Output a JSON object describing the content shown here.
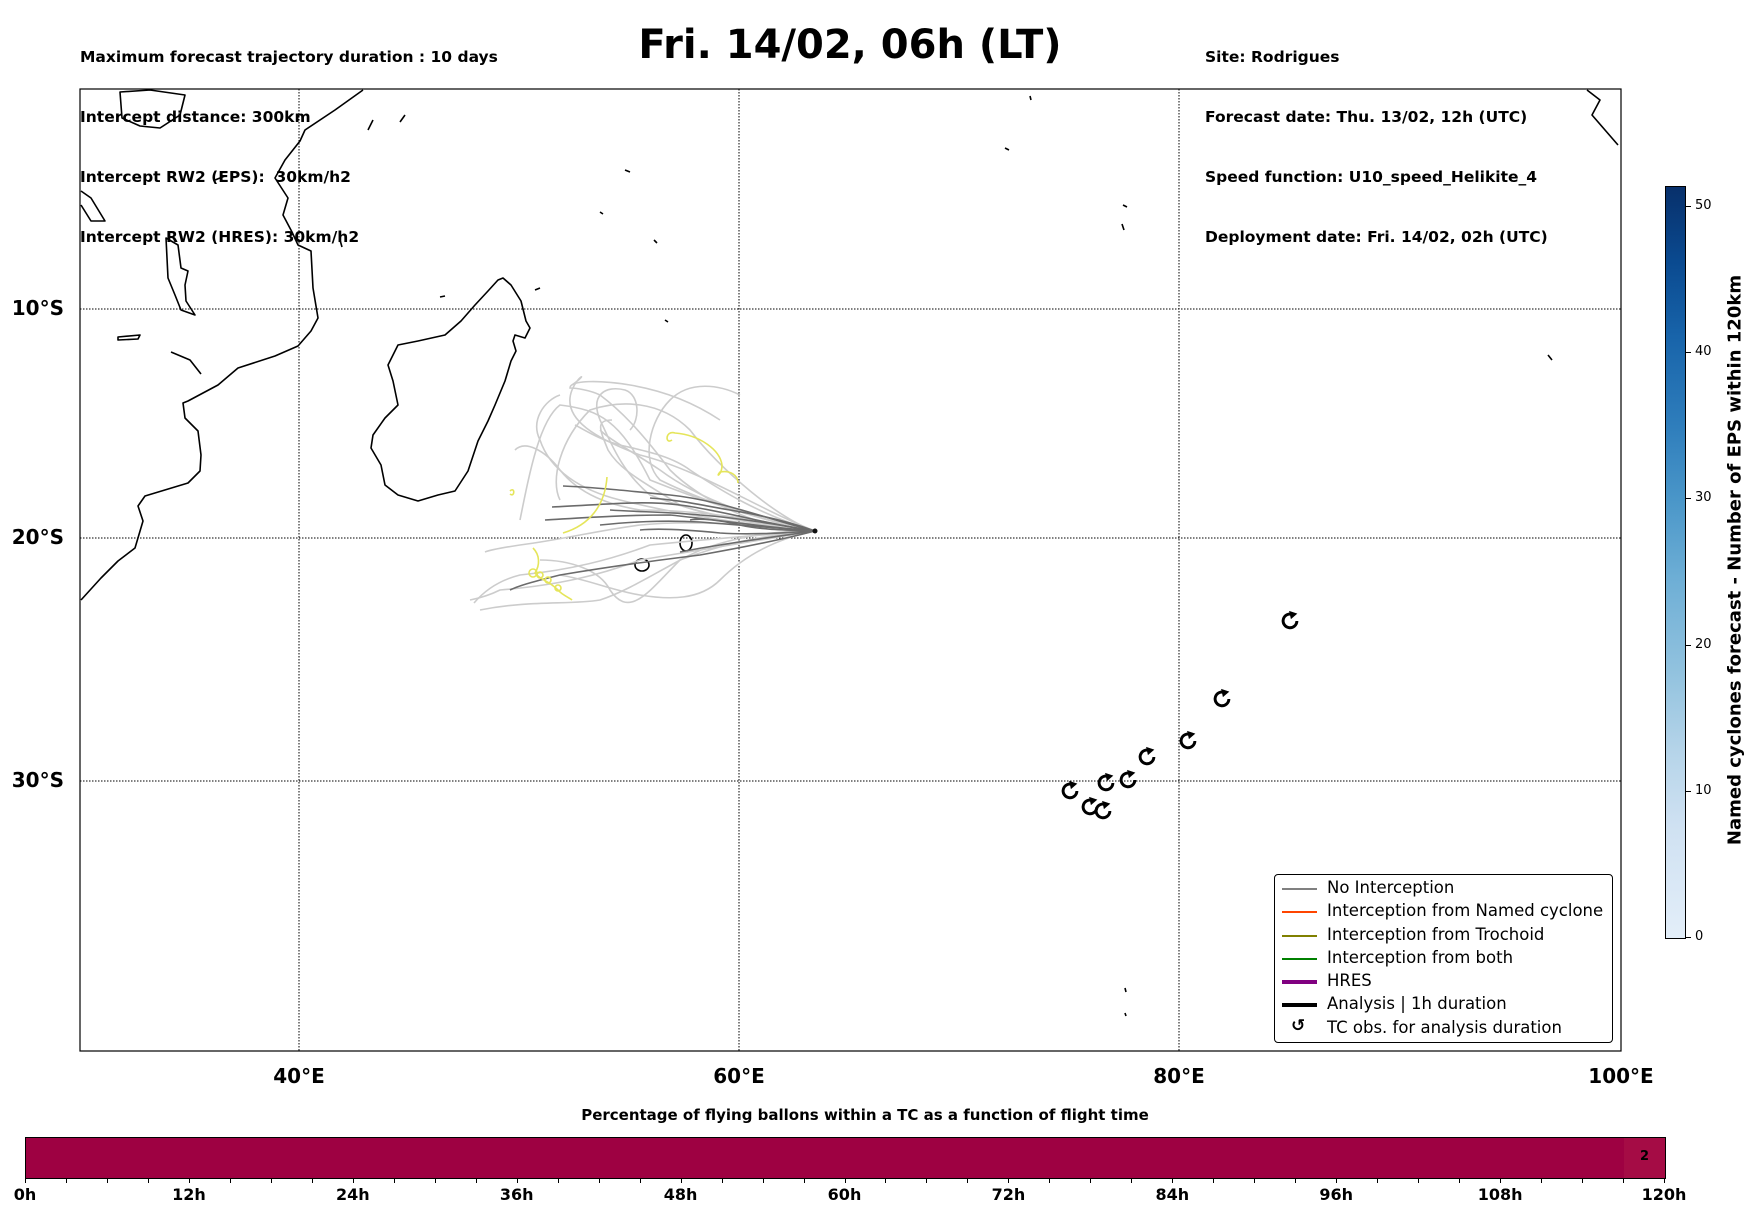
{
  "header_left": [
    "Maximum forecast trajectory duration : 10 days",
    "Intercept distance: 300km",
    "Intercept RW2 (EPS):  30km/h2",
    "Intercept RW2 (HRES): 30km/h2"
  ],
  "title": "Fri. 14/02, 06h (LT)",
  "header_right": [
    "Site: Rodrigues",
    "Forecast date: Thu. 13/02, 12h (UTC)",
    "Speed function: U10_speed_Helikite_4",
    "Deployment date: Fri. 14/02, 02h (UTC)"
  ],
  "map": {
    "lat_labels": [
      "10°S",
      "20°S",
      "30°S"
    ],
    "lon_labels": [
      "40°E",
      "60°E",
      "80°E",
      "100°E"
    ],
    "legend": [
      {
        "label": "No Interception",
        "color": "#808080",
        "style": "thin"
      },
      {
        "label": "Interception from Named cyclone",
        "color": "#ff4500",
        "style": "thin"
      },
      {
        "label": "Interception from Trochoid",
        "color": "#808000",
        "style": "thin"
      },
      {
        "label": "Interception from both",
        "color": "#008000",
        "style": "thin"
      },
      {
        "label": "HRES",
        "color": "#800080",
        "style": "thick"
      },
      {
        "label": "Analysis | 1h duration",
        "color": "#000000",
        "style": "thick"
      },
      {
        "label": "TC obs. for analysis duration",
        "color": "#000000",
        "style": "symbol"
      }
    ],
    "tc_symbol": "↺"
  },
  "colorbar": {
    "title": "Named cyclones forecast - Number of EPS within 120km",
    "ticks": [
      "0",
      "10",
      "20",
      "30",
      "40",
      "50"
    ]
  },
  "chart_data": {
    "type": "heatmap",
    "title": "Percentage of flying ballons within a TC as a function of flight time",
    "xlabel": "",
    "xlim": [
      0,
      120
    ],
    "x_ticks": [
      "0h",
      "12h",
      "24h",
      "36h",
      "48h",
      "60h",
      "72h",
      "84h",
      "96h",
      "108h",
      "120h"
    ],
    "segments": [
      {
        "from": 0,
        "to": 117,
        "label": "",
        "color": "#9e0142"
      },
      {
        "from": 117,
        "to": 120,
        "label": "2",
        "color": "#a50c45"
      }
    ]
  }
}
